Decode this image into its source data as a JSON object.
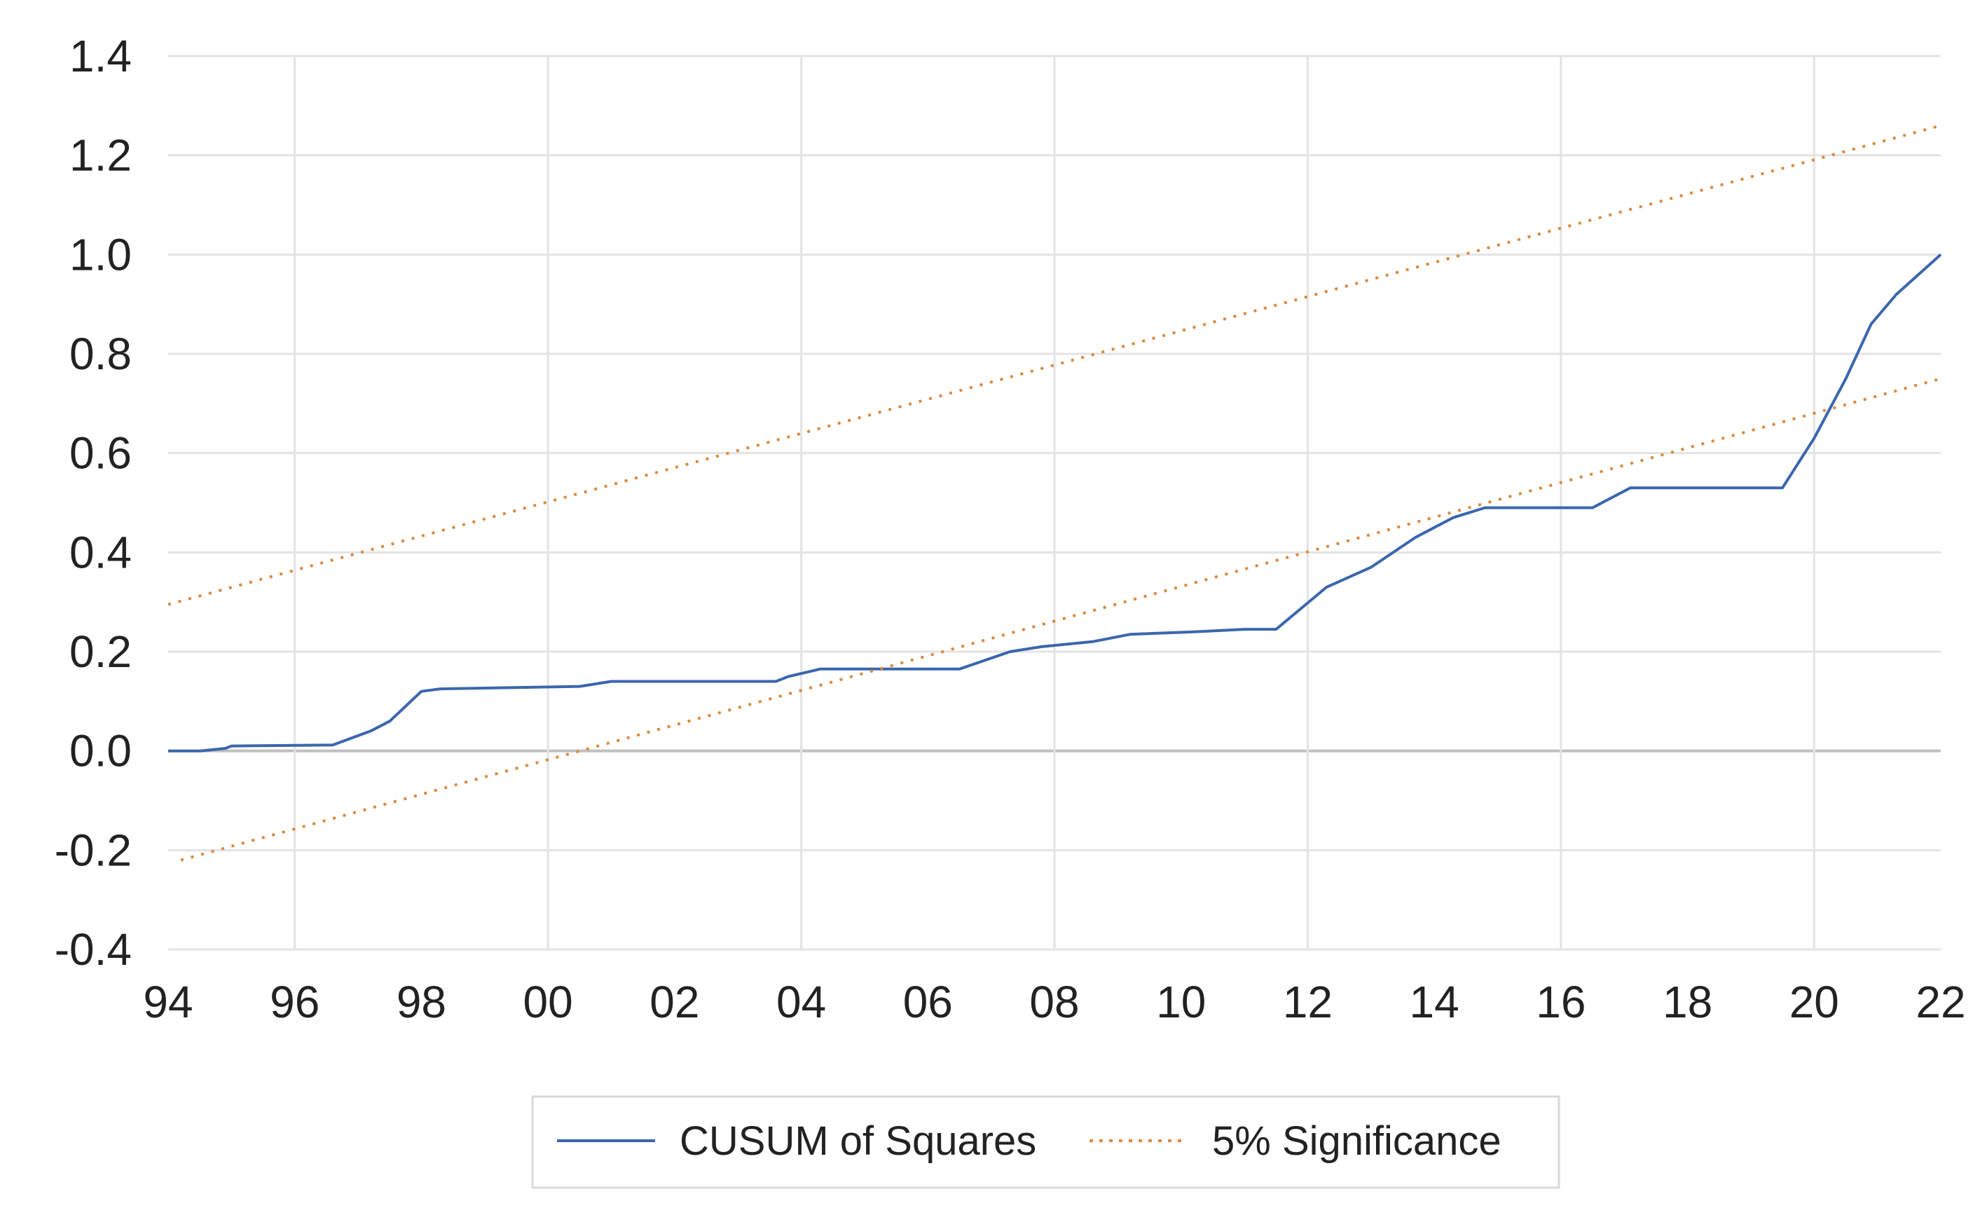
{
  "chart_data": {
    "type": "line",
    "title": "",
    "xlabel": "",
    "ylabel": "",
    "xlim": [
      1994,
      2022
    ],
    "ylim": [
      -0.4,
      1.4
    ],
    "grid": true,
    "legend_position": "bottom",
    "x_ticks": [
      1994,
      1996,
      1998,
      2000,
      2002,
      2004,
      2006,
      2008,
      2010,
      2012,
      2014,
      2016,
      2018,
      2020,
      2022
    ],
    "x_tick_labels": [
      "94",
      "96",
      "98",
      "00",
      "02",
      "04",
      "06",
      "08",
      "10",
      "12",
      "14",
      "16",
      "18",
      "20",
      "22"
    ],
    "y_ticks": [
      -0.4,
      -0.2,
      0.0,
      0.2,
      0.4,
      0.6,
      0.8,
      1.0,
      1.2,
      1.4
    ],
    "y_tick_labels": [
      "-0.4",
      "-0.2",
      "0.0",
      "0.2",
      "0.4",
      "0.6",
      "0.8",
      "1.0",
      "1.2",
      "1.4"
    ],
    "series": [
      {
        "name": "CUSUM of Squares",
        "color": "#3a66ad",
        "style": "solid",
        "points": [
          [
            1994.0,
            0.0
          ],
          [
            1994.5,
            0.0
          ],
          [
            1994.9,
            0.005
          ],
          [
            1995.0,
            0.01
          ],
          [
            1996.6,
            0.012
          ],
          [
            1997.2,
            0.04
          ],
          [
            1997.5,
            0.06
          ],
          [
            1998.0,
            0.12
          ],
          [
            1998.3,
            0.125
          ],
          [
            2000.5,
            0.13
          ],
          [
            2001.0,
            0.14
          ],
          [
            2003.6,
            0.14
          ],
          [
            2003.8,
            0.15
          ],
          [
            2004.3,
            0.165
          ],
          [
            2006.5,
            0.165
          ],
          [
            2007.3,
            0.2
          ],
          [
            2007.8,
            0.21
          ],
          [
            2008.6,
            0.22
          ],
          [
            2009.2,
            0.235
          ],
          [
            2010.2,
            0.24
          ],
          [
            2011.0,
            0.245
          ],
          [
            2011.5,
            0.245
          ],
          [
            2012.3,
            0.33
          ],
          [
            2013.0,
            0.37
          ],
          [
            2013.7,
            0.43
          ],
          [
            2014.3,
            0.47
          ],
          [
            2014.8,
            0.49
          ],
          [
            2016.5,
            0.49
          ],
          [
            2017.1,
            0.53
          ],
          [
            2019.5,
            0.53
          ],
          [
            2020.0,
            0.63
          ],
          [
            2020.5,
            0.75
          ],
          [
            2020.9,
            0.86
          ],
          [
            2021.3,
            0.92
          ],
          [
            2022.0,
            1.0
          ]
        ]
      },
      {
        "name": "5% Significance",
        "color": "#d98b3f",
        "style": "dotted",
        "points": [
          [
            1994.0,
            0.295
          ],
          [
            2022.0,
            1.26
          ]
        ]
      },
      {
        "name": "",
        "color": "#d98b3f",
        "style": "dotted",
        "points": [
          [
            1994.2,
            -0.22
          ],
          [
            2022.0,
            0.75
          ]
        ]
      }
    ]
  },
  "legend": {
    "items": [
      {
        "label": "CUSUM of Squares",
        "color": "#3a66ad",
        "style": "solid"
      },
      {
        "label": "5% Significance",
        "color": "#d98b3f",
        "style": "dotted"
      }
    ]
  }
}
